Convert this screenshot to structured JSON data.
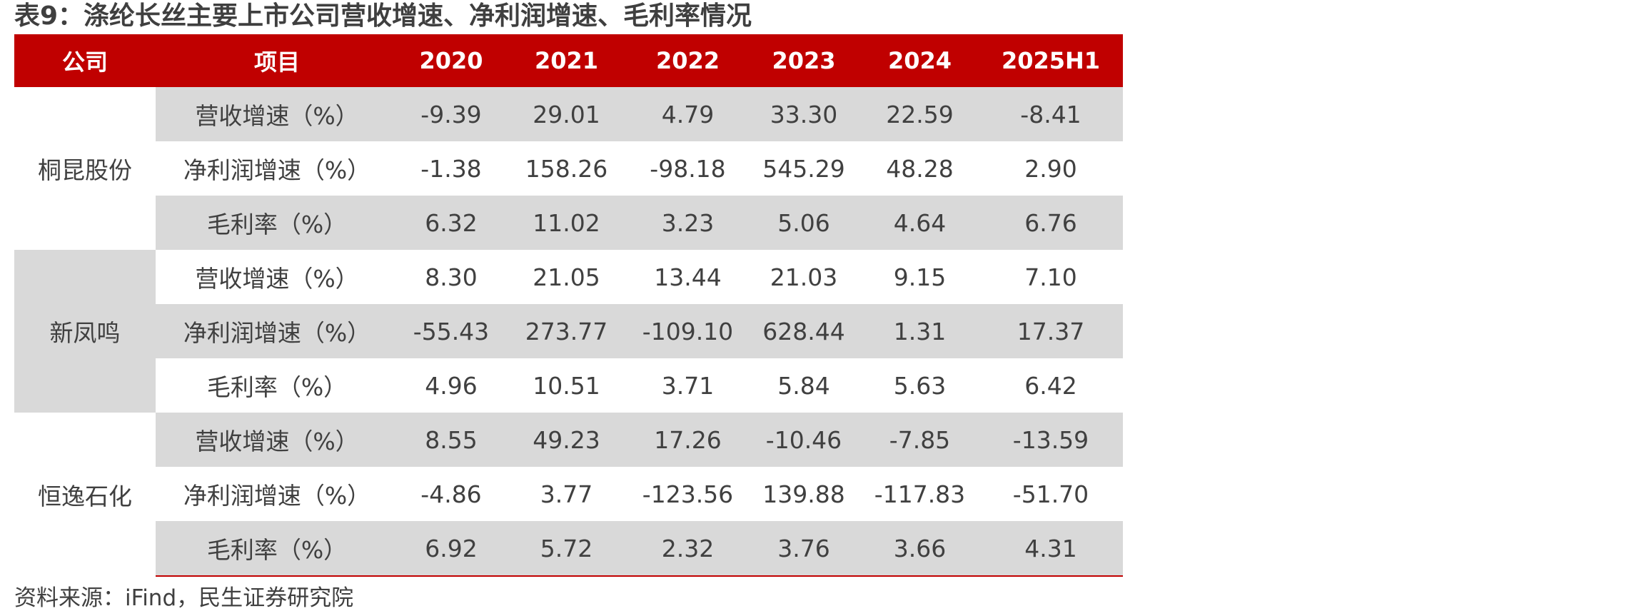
{
  "title": "表9：涤纶长丝主要上市公司营收增速、净利润增速、毛利率情况",
  "table": {
    "headers": [
      "公司",
      "项目",
      "2020",
      "2021",
      "2022",
      "2023",
      "2024",
      "2025H1"
    ],
    "groups": [
      {
        "company": "桐昆股份",
        "rows": [
          {
            "item": "营收增速（%）",
            "values": [
              "-9.39",
              "29.01",
              "4.79",
              "33.30",
              "22.59",
              "-8.41"
            ]
          },
          {
            "item": "净利润增速（%）",
            "values": [
              "-1.38",
              "158.26",
              "-98.18",
              "545.29",
              "48.28",
              "2.90"
            ]
          },
          {
            "item": "毛利率（%）",
            "values": [
              "6.32",
              "11.02",
              "3.23",
              "5.06",
              "4.64",
              "6.76"
            ]
          }
        ]
      },
      {
        "company": "新凤鸣",
        "rows": [
          {
            "item": "营收增速（%）",
            "values": [
              "8.30",
              "21.05",
              "13.44",
              "21.03",
              "9.15",
              "7.10"
            ]
          },
          {
            "item": "净利润增速（%）",
            "values": [
              "-55.43",
              "273.77",
              "-109.10",
              "628.44",
              "1.31",
              "17.37"
            ]
          },
          {
            "item": "毛利率（%）",
            "values": [
              "4.96",
              "10.51",
              "3.71",
              "5.84",
              "5.63",
              "6.42"
            ]
          }
        ]
      },
      {
        "company": "恒逸石化",
        "rows": [
          {
            "item": "营收增速（%）",
            "values": [
              "8.55",
              "49.23",
              "17.26",
              "-10.46",
              "-7.85",
              "-13.59"
            ]
          },
          {
            "item": "净利润增速（%）",
            "values": [
              "-4.86",
              "3.77",
              "-123.56",
              "139.88",
              "-117.83",
              "-51.70"
            ]
          },
          {
            "item": "毛利率（%）",
            "values": [
              "6.92",
              "5.72",
              "2.32",
              "3.76",
              "3.66",
              "4.31"
            ]
          }
        ]
      }
    ]
  },
  "source": "资料来源：iFind，民生证券研究院",
  "colors": {
    "header_background": "#c00000",
    "header_text": "#ffffff",
    "shaded_row": "#d9d9d9",
    "body_text": "#404040"
  }
}
